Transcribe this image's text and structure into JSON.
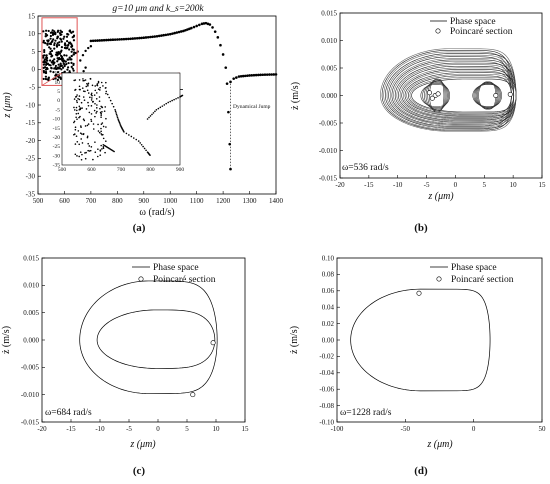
{
  "figure": {
    "panels": [
      {
        "id": "a",
        "label": "(a)",
        "title": "g=10 μm and k_s=200k",
        "xlabel": "ω (rad/s)",
        "ylabel": "z (μm)",
        "annotation": "Dynamical Jump",
        "inset_xticks": [
          "500",
          "600",
          "700",
          "800",
          "900"
        ]
      },
      {
        "id": "b",
        "label": "(b)",
        "xlabel": "z (μm)",
        "ylabel": "ż (m/s)",
        "legend": [
          "Phase space",
          "Poincaré section"
        ],
        "freq_note": "ω=536 rad/s"
      },
      {
        "id": "c",
        "label": "(c)",
        "xlabel": "z (μm)",
        "ylabel": "ż (m/s)",
        "legend": [
          "Phase space",
          "Poincaré section"
        ],
        "freq_note": "ω=684 rad/s"
      },
      {
        "id": "d",
        "label": "(d)",
        "xlabel": "z (μm)",
        "ylabel": "ż (m/s)",
        "legend": [
          "Phase space",
          "Poincaré section"
        ],
        "freq_note": "ω=1228 rad/s"
      }
    ]
  },
  "chart_data": [
    {
      "type": "scatter",
      "panel": "a",
      "title": "g=10 μm and k_s=200k",
      "xlabel": "ω (rad/s)",
      "ylabel": "z (μm)",
      "xlim": [
        500,
        1400
      ],
      "ylim": [
        -35,
        15
      ],
      "xticks": [
        500,
        600,
        700,
        800,
        900,
        1000,
        1100,
        1200,
        1300,
        1400
      ],
      "yticks": [
        -35,
        -30,
        -25,
        -20,
        -15,
        -10,
        -5,
        0,
        5,
        10,
        15
      ],
      "main_branch": [
        [
          700,
          8.0
        ],
        [
          750,
          8.2
        ],
        [
          800,
          8.4
        ],
        [
          850,
          8.6
        ],
        [
          900,
          8.9
        ],
        [
          950,
          9.3
        ],
        [
          1000,
          9.9
        ],
        [
          1050,
          10.8
        ],
        [
          1080,
          11.6
        ],
        [
          1100,
          12.2
        ],
        [
          1120,
          12.8
        ],
        [
          1135,
          13.0
        ],
        [
          1150,
          12.6
        ],
        [
          1160,
          11.8
        ],
        [
          1170,
          10.6
        ],
        [
          1180,
          9.0
        ],
        [
          1190,
          6.8
        ],
        [
          1200,
          4.2
        ],
        [
          1210,
          0.5
        ],
        [
          1215,
          -4.0
        ],
        [
          1220,
          -12.0
        ],
        [
          1225,
          -21.0
        ],
        [
          1228,
          -28.0
        ]
      ],
      "after_jump": [
        [
          1228,
          -3.5
        ],
        [
          1240,
          -2.6
        ],
        [
          1260,
          -2.0
        ],
        [
          1300,
          -1.7
        ],
        [
          1350,
          -1.5
        ],
        [
          1400,
          -1.4
        ]
      ],
      "low_branch_1": [
        [
          590,
          1.0
        ],
        [
          605,
          2.2
        ],
        [
          620,
          3.3
        ],
        [
          635,
          4.2
        ],
        [
          650,
          5.0
        ]
      ],
      "low_branch_2": [
        [
          660,
          2.5
        ],
        [
          670,
          4.0
        ],
        [
          680,
          5.2
        ],
        [
          690,
          6.0
        ],
        [
          700,
          6.5
        ]
      ],
      "low_branch_3": [
        [
          650,
          -3.5
        ],
        [
          665,
          -1.5
        ],
        [
          680,
          0.5
        ]
      ],
      "chaotic_region": {
        "x_range": [
          520,
          640
        ],
        "y_range": [
          -3,
          11
        ]
      },
      "annotations": [
        "Dynamical Jump"
      ]
    },
    {
      "type": "line",
      "panel": "b",
      "xlabel": "z (μm)",
      "ylabel": "ż (m/s)",
      "xlim": [
        -20,
        15
      ],
      "ylim": [
        -0.015,
        0.015
      ],
      "xticks": [
        -20,
        -15,
        -10,
        -5,
        0,
        5,
        10,
        15
      ],
      "yticks": [
        -0.015,
        -0.01,
        -0.005,
        0.0,
        0.005,
        0.01,
        0.015
      ],
      "series": [
        {
          "name": "Phase space"
        },
        {
          "name": "Poincaré section"
        }
      ],
      "poincare_points": [
        [
          -4.5,
          0.0005
        ],
        [
          -3.5,
          0.0
        ],
        [
          -4.0,
          -0.0005
        ],
        [
          7.0,
          0.0
        ],
        [
          -3.0,
          0.0003
        ],
        [
          9.5,
          0.0002
        ]
      ],
      "envelope": {
        "zmin": -13,
        "zmax": 10.5,
        "vmax": 0.0085,
        "vmin": -0.0065
      }
    },
    {
      "type": "line",
      "panel": "c",
      "xlabel": "z (μm)",
      "ylabel": "ż (m/s)",
      "xlim": [
        -20,
        15
      ],
      "ylim": [
        -0.015,
        0.015
      ],
      "xticks": [
        -20,
        -15,
        -10,
        -5,
        0,
        5,
        10,
        15
      ],
      "yticks": [
        -0.015,
        -0.01,
        -0.005,
        0.0,
        0.005,
        0.01,
        0.015
      ],
      "series": [
        {
          "name": "Phase space"
        },
        {
          "name": "Poincaré section"
        }
      ],
      "outer_loop": {
        "zmin": -13.5,
        "zmax": 10.2,
        "vmax": 0.0108,
        "vmin": -0.0098
      },
      "inner_loop": {
        "zmin": -10.5,
        "zmax": 9.8,
        "vmax": 0.0055,
        "vmin": -0.0052
      },
      "poincare_points": [
        [
          9.5,
          -0.0005
        ],
        [
          6.0,
          -0.01
        ]
      ]
    },
    {
      "type": "line",
      "panel": "d",
      "xlabel": "z (μm)",
      "ylabel": "ż (m/s)",
      "xlim": [
        -100,
        50
      ],
      "ylim": [
        -0.1,
        0.1
      ],
      "xticks": [
        -100,
        -50,
        0,
        50
      ],
      "yticks": [
        -0.1,
        -0.08,
        -0.06,
        -0.04,
        -0.02,
        0.0,
        0.02,
        0.04,
        0.06,
        0.08,
        0.1
      ],
      "series": [
        {
          "name": "Phase space"
        },
        {
          "name": "Poincaré section"
        }
      ],
      "loop": {
        "zmin": -90,
        "zmax": 12,
        "vmax": 0.062,
        "vmin": -0.062
      },
      "poincare_points": [
        [
          -40,
          0.057
        ]
      ]
    }
  ]
}
